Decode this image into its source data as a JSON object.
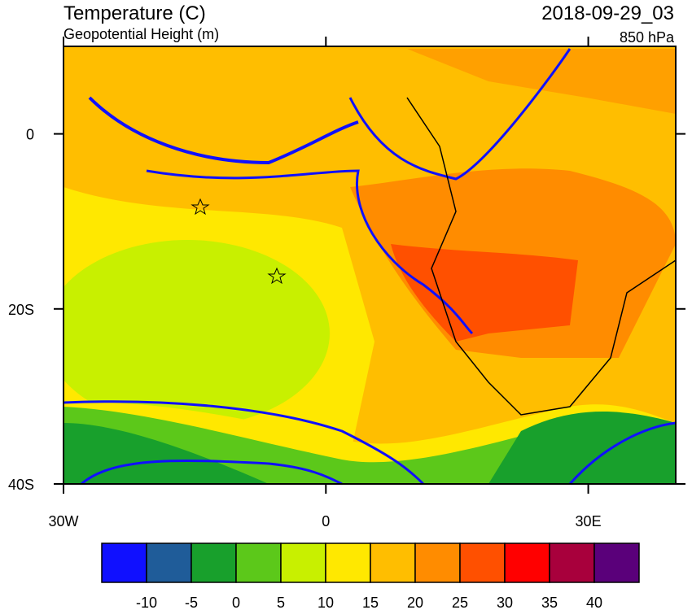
{
  "header": {
    "title": "Temperature (C)",
    "subtitle": "Geopotential Height (m)",
    "time": "2018-09-29_03",
    "level": "850 hPa"
  },
  "map": {
    "xlim": [
      -30,
      40
    ],
    "ylim": [
      -40,
      10
    ],
    "xticks": [
      {
        "value": -30,
        "label": "30W"
      },
      0,
      {
        "value": 30,
        "label": "30E"
      }
    ],
    "yticks": [
      0,
      {
        "value": -20,
        "label": "20S"
      },
      {
        "value": -40,
        "label": "40S"
      }
    ]
  },
  "colorbar": {
    "boundaries": [
      -10,
      -5,
      0,
      5,
      10,
      15,
      20,
      25,
      30,
      35,
      40
    ],
    "colors": [
      "#1010ff",
      "#1f5c99",
      "#18a02c",
      "#5cc81a",
      "#c8f000",
      "#ffe800",
      "#ffbe00",
      "#ff8c00",
      "#ff5000",
      "#ff0000",
      "#a8003c",
      "#5a007a"
    ]
  }
}
